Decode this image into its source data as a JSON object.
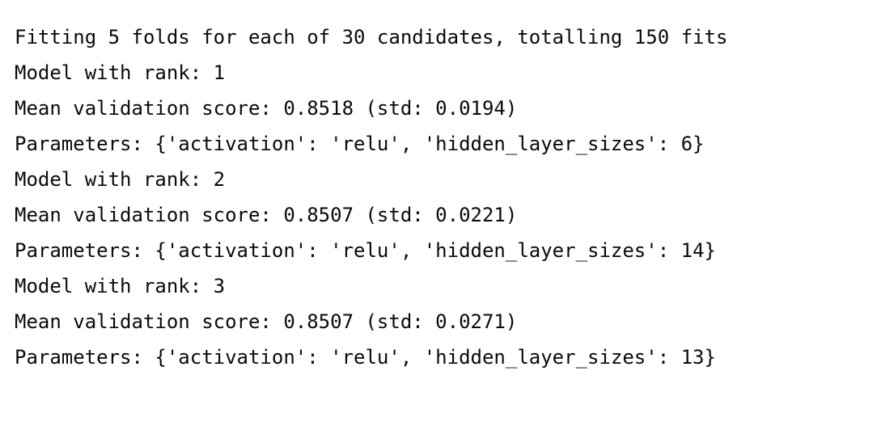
{
  "console": {
    "lines": [
      "Fitting 5 folds for each of 30 candidates, totalling 150 fits",
      "Model with rank: 1",
      "Mean validation score: 0.8518 (std: 0.0194)",
      "Parameters: {'activation': 'relu', 'hidden_layer_sizes': 6}",
      "Model with rank: 2",
      "Mean validation score: 0.8507 (std: 0.0221)",
      "Parameters: {'activation': 'relu', 'hidden_layer_sizes': 14}",
      "Model with rank: 3",
      "Mean validation score: 0.8507 (std: 0.0271)",
      "Parameters: {'activation': 'relu', 'hidden_layer_sizes': 13}"
    ]
  }
}
